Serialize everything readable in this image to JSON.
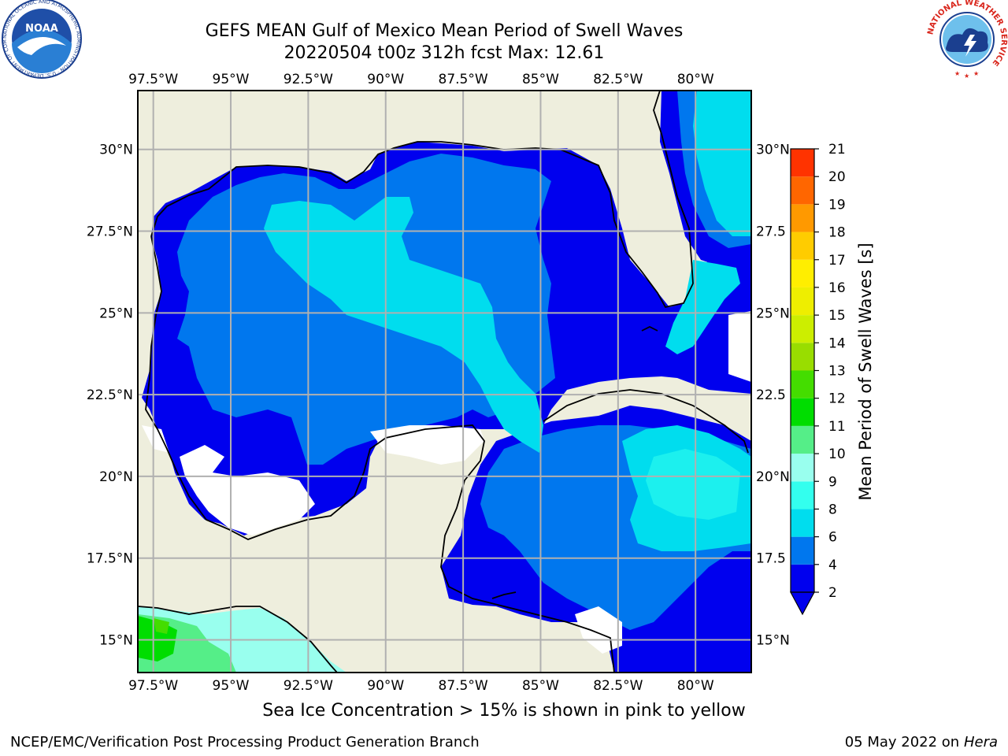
{
  "header": {
    "title_line1": "GEFS MEAN Gulf of Mexico Mean Period of Swell Waves",
    "title_line2": "20220504 t00z 312h fcst   Max: 12.61"
  },
  "map": {
    "lon_labels": [
      "97.5°W",
      "95°W",
      "92.5°W",
      "90°W",
      "87.5°W",
      "85°W",
      "82.5°W",
      "80°W"
    ],
    "lon_values": [
      -97.5,
      -95,
      -92.5,
      -90,
      -87.5,
      -85,
      -82.5,
      -80
    ],
    "lat_labels_left": [
      "30°N",
      "27.5°N",
      "25°N",
      "22.5°N",
      "20°N",
      "17.5°N",
      "15°N"
    ],
    "lat_labels_right": [
      "30°N",
      "27.5",
      "25°N",
      "22.5",
      "20°N",
      "17.5",
      "15°N"
    ],
    "lat_values": [
      30,
      27.5,
      25,
      22.5,
      20,
      17.5,
      15
    ],
    "lon_range": [
      -98,
      -78.2
    ],
    "lat_range": [
      14.0,
      31.8
    ],
    "grid": true,
    "colors": {
      "land": "#eeeedd",
      "grid": "#b0b0b0",
      "coast": "#000000",
      "no_data": "#ffffff"
    }
  },
  "colorbar": {
    "label": "Mean Period of Swell Waves [s]",
    "ticks": [
      "2",
      "4",
      "6",
      "8",
      "9",
      "10",
      "11",
      "12",
      "13",
      "14",
      "15",
      "16",
      "17",
      "18",
      "19",
      "20",
      "21"
    ],
    "colors": [
      "#0000ee",
      "#0077ee",
      "#00ddee",
      "#33ffee",
      "#99ffee",
      "#55ee88",
      "#00dd00",
      "#44dd00",
      "#99dd00",
      "#ccee00",
      "#eeee00",
      "#ffee00",
      "#ffcc00",
      "#ff9900",
      "#ff6600",
      "#ff3300",
      "#ff0000"
    ],
    "extend": "min"
  },
  "note": "Sea Ice Concentration > 15% is shown in pink to yellow",
  "footer": {
    "left": "NCEP/EMC/Verification Post Processing Product Generation Branch",
    "right_date": "05 May 2022 on",
    "right_host": "Hera"
  },
  "logos": {
    "left": "noaa-logo",
    "left_ring_text": "NATIONAL OCEANIC AND ATMOSPHERIC ADMINISTRATION · U.S. DEPARTMENT OF COMMERCE ·",
    "left_wordmark": "NOAA",
    "right": "national-weather-service-logo",
    "right_ring_text": "NATIONAL WEATHER SERVICE"
  }
}
